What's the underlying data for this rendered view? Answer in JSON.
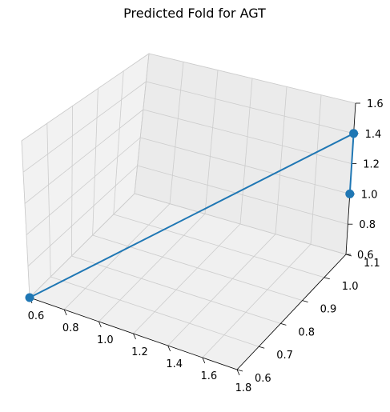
{
  "chart_data": {
    "type": "scatter",
    "title": "Predicted Fold for AGT",
    "series": [
      {
        "x": [
          0.6,
          1.8,
          1.8
        ],
        "y": [
          0.6,
          1.1,
          1.1
        ],
        "z": [
          0.6,
          1.4,
          1.0
        ],
        "color": "#1f77b4",
        "mode": "lines+markers"
      }
    ],
    "axes": {
      "x": {
        "ticks": [
          "0.6",
          "0.8",
          "1.0",
          "1.2",
          "1.4",
          "1.6",
          "1.8"
        ]
      },
      "y": {
        "ticks": [
          "0.6",
          "0.7",
          "0.8",
          "0.9",
          "1.0",
          "1.1"
        ]
      },
      "z": {
        "ticks": [
          "0.6",
          "0.8",
          "1.0",
          "1.2",
          "1.4",
          "1.6"
        ]
      }
    },
    "grid": true
  }
}
